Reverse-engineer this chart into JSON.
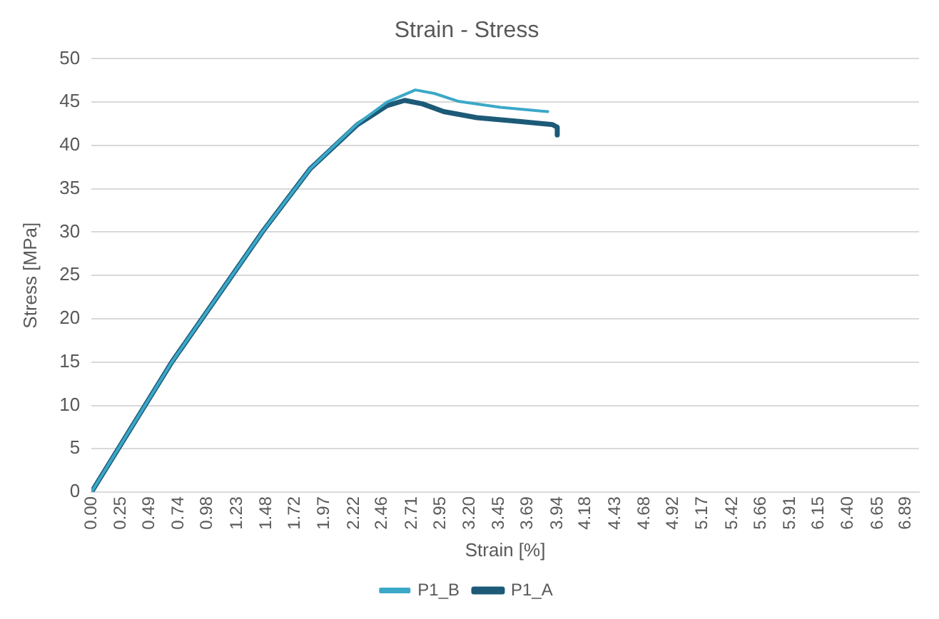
{
  "chart_data": {
    "type": "line",
    "title": "Strain - Stress",
    "xlabel": "Strain [%]",
    "ylabel": "Stress [MPa]",
    "series": [
      {
        "name": "P1_A",
        "color": "#1d5a78",
        "x": [
          0,
          0.68,
          1.45,
          1.85,
          2.25,
          2.5,
          2.65,
          2.8,
          2.98,
          3.26,
          3.6,
          3.9,
          3.94,
          3.94
        ],
        "values": [
          0,
          15,
          30.1,
          37.3,
          42.4,
          44.6,
          45.2,
          44.8,
          43.9,
          43.2,
          42.8,
          42.4,
          42.1,
          41.2
        ]
      },
      {
        "name": "P1_B",
        "color": "#3ba8c8",
        "x": [
          0,
          0.68,
          1.45,
          1.85,
          2.25,
          2.5,
          2.74,
          2.9,
          3.1,
          3.46,
          3.86
        ],
        "values": [
          0,
          15,
          30.1,
          37.3,
          42.5,
          45,
          46.4,
          46,
          45.1,
          44.4,
          43.9
        ]
      }
    ],
    "xlim": [
      0,
      7.0
    ],
    "xticks": [
      {
        "value": 0,
        "label": "0.00"
      },
      0.25,
      0.49,
      0.74,
      0.98,
      1.23,
      1.48,
      1.72,
      1.97,
      2.22,
      2.46,
      2.71,
      2.95,
      {
        "value": 3.2,
        "label": "3.20"
      },
      3.45,
      3.69,
      3.94,
      4.18,
      4.43,
      4.68,
      4.92,
      5.17,
      5.42,
      5.66,
      5.91,
      6.15,
      {
        "value": 6.4,
        "label": "6.40"
      },
      6.65,
      6.89
    ],
    "ylim": [
      0,
      50
    ],
    "yticks": [
      0,
      5,
      10,
      15,
      20,
      25,
      30,
      35,
      40,
      45,
      50
    ],
    "grid": "y",
    "legend": "bottom",
    "marker": "none",
    "line_style": "solid"
  }
}
